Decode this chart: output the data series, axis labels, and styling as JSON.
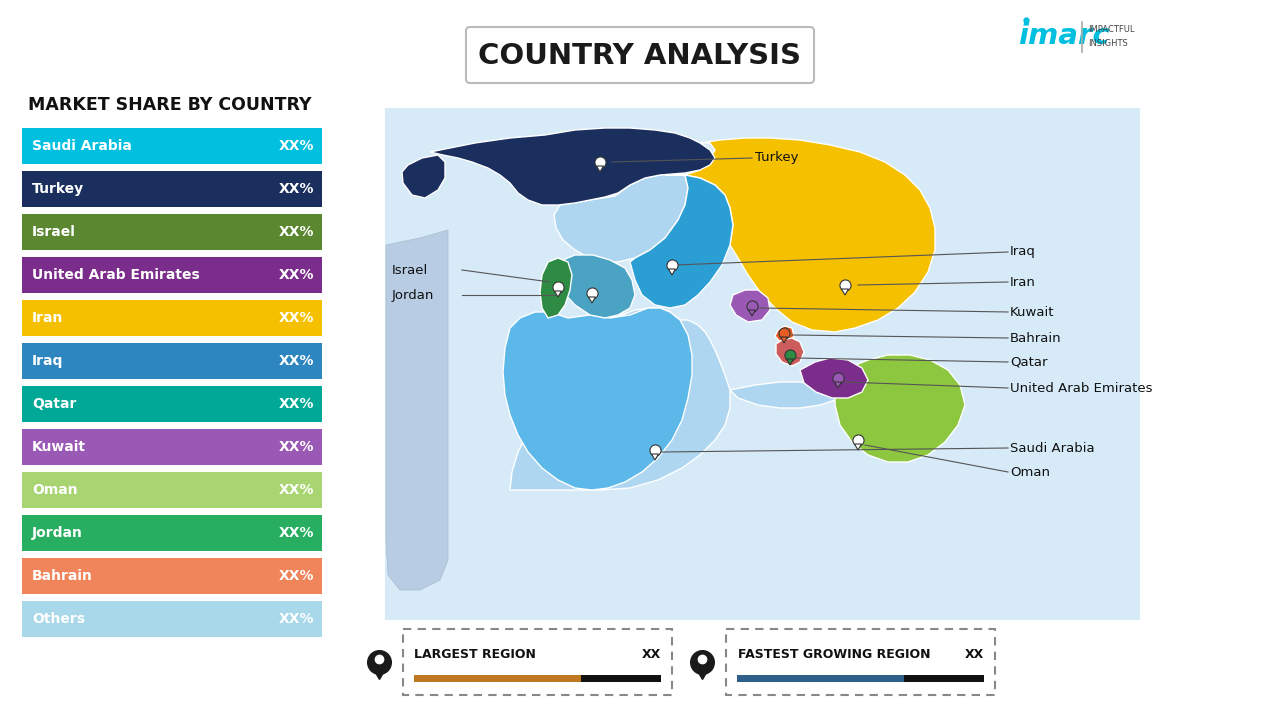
{
  "title": "COUNTRY ANALYSIS",
  "background_color": "#FFFFFF",
  "left_heading": "MARKET SHARE BY COUNTRY",
  "legend_items": [
    {
      "label": "Saudi Arabia",
      "value": "XX%",
      "color": "#00BFDF"
    },
    {
      "label": "Turkey",
      "value": "XX%",
      "color": "#1B2F5E"
    },
    {
      "label": "Israel",
      "value": "XX%",
      "color": "#5B8731"
    },
    {
      "label": "United Arab Emirates",
      "value": "XX%",
      "color": "#7B2D8B"
    },
    {
      "label": "Iran",
      "value": "XX%",
      "color": "#F5C000"
    },
    {
      "label": "Iraq",
      "value": "XX%",
      "color": "#2E86C1"
    },
    {
      "label": "Qatar",
      "value": "XX%",
      "color": "#00A896"
    },
    {
      "label": "Kuwait",
      "value": "XX%",
      "color": "#9B59B6"
    },
    {
      "label": "Oman",
      "value": "XX%",
      "color": "#A8D572"
    },
    {
      "label": "Jordan",
      "value": "XX%",
      "color": "#27AE60"
    },
    {
      "label": "Bahrain",
      "value": "XX%",
      "color": "#F0845A"
    },
    {
      "label": "Others",
      "value": "XX%",
      "color": "#A8D8EA"
    }
  ],
  "bottom_left_label": "LARGEST REGION",
  "bottom_left_value": "XX",
  "bottom_right_label": "FASTEST GROWING REGION",
  "bottom_right_value": "XX",
  "bar_color_left": "#C07820",
  "bar_color_right": "#2E5F8A",
  "map_bg": "#D6EAF8",
  "colors": {
    "turkey": "#1B2F5E",
    "iran": "#F5C000",
    "iraq": "#2B9ED4",
    "saudi": "#5BB8E8",
    "israel": "#2E8B44",
    "jordan": "#4BA3C3",
    "kuwait": "#9B59B6",
    "qatar": "#CD5C5C",
    "uae": "#7B2D8B",
    "oman": "#8DC63F",
    "bahrain": "#E85D26",
    "egypt": "#B8CCE4",
    "syria": "#AED6F1",
    "yemen": "#AED6F1",
    "other_bg": "#C5DFF0"
  },
  "pin_color_white": "#FFFFFF",
  "pin_color_purple": "#9B59B6",
  "pin_color_orange": "#E85D26",
  "pin_color_green": "#8DC63F"
}
